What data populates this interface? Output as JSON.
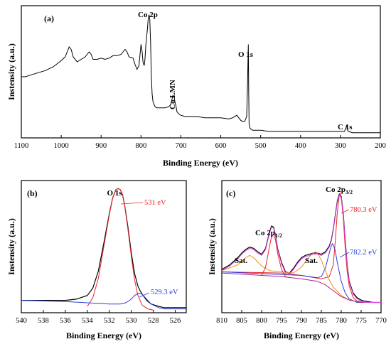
{
  "chart_data": [
    {
      "panel": "(a)",
      "type": "line",
      "xlabel": "Binding Energy (eV)",
      "ylabel": "Instensity (a.u.)",
      "xlim": [
        1100,
        200
      ],
      "xticks": [
        1100,
        1000,
        900,
        800,
        700,
        600,
        500,
        400,
        300,
        200
      ],
      "yticks_shown": false,
      "annotations": [
        "Co 2p",
        "Co LMN",
        "O 1s",
        "C 1s"
      ],
      "series": [
        {
          "color": "#000000",
          "x": [
            1100,
            1090,
            1080,
            1060,
            1040,
            1020,
            1000,
            990,
            985,
            980,
            975,
            970,
            960,
            950,
            940,
            935,
            930,
            925,
            920,
            910,
            900,
            890,
            880,
            870,
            860,
            850,
            845,
            840,
            835,
            830,
            820,
            815,
            810,
            805,
            800,
            797,
            795,
            792,
            790,
            788,
            786,
            784,
            782,
            780,
            778,
            776,
            774,
            772,
            770,
            765,
            760,
            750,
            740,
            730,
            725,
            720,
            717,
            715,
            712,
            710,
            705,
            700,
            690,
            680,
            660,
            640,
            620,
            600,
            580,
            570,
            560,
            555,
            550,
            545,
            540,
            535,
            533,
            531,
            530,
            529,
            527,
            525,
            520,
            500,
            480,
            460,
            440,
            420,
            400,
            380,
            360,
            340,
            320,
            300,
            290,
            286,
            284,
            282,
            280,
            270,
            250,
            230,
            210,
            200
          ],
          "y": [
            0.46,
            0.46,
            0.47,
            0.49,
            0.51,
            0.54,
            0.59,
            0.62,
            0.66,
            0.7,
            0.68,
            0.62,
            0.58,
            0.6,
            0.62,
            0.64,
            0.66,
            0.64,
            0.6,
            0.6,
            0.61,
            0.6,
            0.61,
            0.63,
            0.63,
            0.64,
            0.66,
            0.68,
            0.66,
            0.62,
            0.61,
            0.56,
            0.52,
            0.55,
            0.72,
            0.66,
            0.58,
            0.55,
            0.6,
            0.71,
            0.78,
            0.84,
            0.92,
            0.96,
            0.92,
            0.74,
            0.46,
            0.32,
            0.26,
            0.22,
            0.21,
            0.21,
            0.21,
            0.22,
            0.24,
            0.31,
            0.3,
            0.26,
            0.22,
            0.18,
            0.16,
            0.15,
            0.14,
            0.14,
            0.14,
            0.13,
            0.13,
            0.13,
            0.12,
            0.13,
            0.15,
            0.13,
            0.11,
            0.1,
            0.1,
            0.14,
            0.38,
            0.72,
            0.36,
            0.08,
            0.05,
            0.04,
            0.03,
            0.03,
            0.02,
            0.02,
            0.02,
            0.02,
            0.02,
            0.02,
            0.02,
            0.02,
            0.02,
            0.02,
            0.02,
            0.05,
            0.07,
            0.03,
            0.02,
            0.01,
            0.01,
            0.01,
            0.01,
            0.01
          ]
        }
      ]
    },
    {
      "panel": "(b)",
      "type": "line",
      "title": "O 1s",
      "xlabel": "Binding Energy (eV)",
      "ylabel": "Instensity (a.u.)",
      "xlim": [
        540,
        525
      ],
      "xticks": [
        540,
        538,
        536,
        534,
        532,
        530,
        528,
        526
      ],
      "annotations": [
        {
          "text": "531 eV",
          "color": "#e8262a"
        },
        {
          "text": "529.3 eV",
          "color": "#2a3fd8"
        }
      ],
      "series": [
        {
          "color": "#000000",
          "x": [
            540,
            539,
            538,
            537,
            536,
            535,
            534,
            533.5,
            533,
            532.5,
            532,
            531.7,
            531.4,
            531.2,
            531,
            530.8,
            530.6,
            530.3,
            530,
            529.7,
            529.4,
            529.2,
            529,
            528.6,
            528.2,
            527.5,
            527,
            526,
            525
          ],
          "y": [
            0.08,
            0.08,
            0.08,
            0.08,
            0.08,
            0.09,
            0.12,
            0.18,
            0.32,
            0.55,
            0.79,
            0.92,
            0.99,
            1.0,
            0.99,
            0.95,
            0.86,
            0.68,
            0.47,
            0.3,
            0.2,
            0.16,
            0.13,
            0.08,
            0.05,
            0.03,
            0.02,
            0.02,
            0.02
          ]
        },
        {
          "color": "#e8262a",
          "x": [
            534,
            533.5,
            533,
            532.5,
            532,
            531.7,
            531.4,
            531.2,
            531,
            530.8,
            530.6,
            530.3,
            530,
            529.7,
            529.4,
            529,
            528.5,
            528
          ],
          "y": [
            0.03,
            0.1,
            0.26,
            0.52,
            0.78,
            0.92,
            0.99,
            1.0,
            0.99,
            0.95,
            0.86,
            0.66,
            0.44,
            0.25,
            0.12,
            0.04,
            0.01,
            0.0
          ]
        },
        {
          "color": "#2a3fd8",
          "x": [
            540,
            536,
            534,
            532,
            531,
            530.5,
            530,
            529.7,
            529.3,
            529,
            528.6,
            528.2,
            527.5,
            527,
            525
          ],
          "y": [
            0.08,
            0.07,
            0.06,
            0.05,
            0.05,
            0.06,
            0.09,
            0.12,
            0.14,
            0.13,
            0.09,
            0.05,
            0.02,
            0.01,
            0.01
          ]
        }
      ]
    },
    {
      "panel": "(c)",
      "type": "line",
      "xlabel": "Binding Energy (eV)",
      "ylabel": "Instensity (a.u.)",
      "xlim": [
        810,
        770
      ],
      "xticks": [
        810,
        805,
        800,
        795,
        790,
        785,
        780,
        775,
        770
      ],
      "annotations": [
        {
          "text": "Co 2p1/2",
          "color": "#000000"
        },
        {
          "text": "Co 2p3/2",
          "color": "#000000"
        },
        {
          "text": "Sat.",
          "color": "#e8901c"
        },
        {
          "text": "Sat.",
          "color": "#e8901c"
        },
        {
          "text": "780.3 eV",
          "color": "#e8262a"
        },
        {
          "text": "782.2 eV",
          "color": "#2a3fd8"
        }
      ],
      "series": [
        {
          "color": "#000000",
          "x": [
            810,
            808,
            806,
            805,
            804,
            803,
            802,
            801,
            800,
            799,
            798,
            797.5,
            797,
            796.5,
            796,
            795,
            794,
            793,
            792,
            791,
            790,
            789,
            788,
            787,
            786,
            785,
            784,
            783,
            782.5,
            782,
            781.5,
            781,
            780.5,
            780,
            779.5,
            779,
            778.5,
            778,
            777,
            776,
            775,
            774,
            772,
            770
          ],
          "y": [
            0.3,
            0.34,
            0.4,
            0.44,
            0.47,
            0.49,
            0.48,
            0.45,
            0.43,
            0.48,
            0.62,
            0.67,
            0.66,
            0.59,
            0.48,
            0.36,
            0.28,
            0.27,
            0.31,
            0.36,
            0.4,
            0.42,
            0.43,
            0.44,
            0.44,
            0.43,
            0.45,
            0.5,
            0.55,
            0.64,
            0.76,
            0.88,
            0.94,
            0.92,
            0.78,
            0.55,
            0.34,
            0.2,
            0.1,
            0.06,
            0.04,
            0.03,
            0.02,
            0.02
          ]
        },
        {
          "color": "#e8262a",
          "x": [
            810,
            795,
            790,
            785,
            783,
            782,
            781.5,
            781,
            780.5,
            780.3,
            780,
            779.5,
            779,
            778.5,
            778,
            777,
            776,
            774,
            770
          ],
          "y": [
            0.28,
            0.27,
            0.25,
            0.22,
            0.24,
            0.34,
            0.54,
            0.78,
            0.93,
            0.95,
            0.91,
            0.74,
            0.48,
            0.28,
            0.16,
            0.06,
            0.03,
            0.02,
            0.02
          ]
        },
        {
          "color": "#2a3fd8",
          "x": [
            810,
            790,
            786,
            785,
            784,
            783,
            782.5,
            782.2,
            782,
            781.5,
            781,
            780,
            779,
            778,
            776,
            770
          ],
          "y": [
            0.28,
            0.25,
            0.23,
            0.24,
            0.31,
            0.44,
            0.5,
            0.52,
            0.51,
            0.46,
            0.36,
            0.2,
            0.1,
            0.05,
            0.02,
            0.02
          ]
        },
        {
          "color": "#e8901c",
          "x": [
            810,
            806,
            804,
            803,
            802,
            800,
            798,
            795,
            792,
            790,
            788,
            787,
            786.5,
            786,
            785,
            784,
            783,
            782,
            780,
            778,
            775,
            770
          ],
          "y": [
            0.29,
            0.34,
            0.4,
            0.42,
            0.4,
            0.33,
            0.29,
            0.28,
            0.27,
            0.32,
            0.41,
            0.44,
            0.45,
            0.44,
            0.38,
            0.29,
            0.21,
            0.15,
            0.08,
            0.04,
            0.02,
            0.02
          ]
        },
        {
          "color": "#b01f8a",
          "x": [
            810,
            805,
            800,
            795,
            790,
            786,
            784,
            782,
            780,
            778,
            775,
            770
          ],
          "y": [
            0.27,
            0.26,
            0.25,
            0.24,
            0.22,
            0.2,
            0.17,
            0.12,
            0.07,
            0.04,
            0.02,
            0.02
          ]
        },
        {
          "color": "#e040e0",
          "x": [
            810,
            808,
            806,
            805,
            804,
            803,
            802,
            801,
            800,
            799,
            798,
            797.5,
            797,
            796.5,
            796,
            795,
            794,
            793,
            792,
            791,
            790,
            789,
            788,
            787,
            786,
            785,
            784,
            783,
            782.5,
            782,
            781.5,
            781,
            780.5,
            780,
            779.5,
            779,
            778.5,
            778,
            777,
            776,
            775,
            774,
            772,
            770
          ],
          "y": [
            0.29,
            0.33,
            0.39,
            0.43,
            0.46,
            0.48,
            0.47,
            0.44,
            0.42,
            0.47,
            0.61,
            0.66,
            0.65,
            0.58,
            0.47,
            0.35,
            0.27,
            0.26,
            0.3,
            0.35,
            0.39,
            0.41,
            0.42,
            0.43,
            0.43,
            0.42,
            0.44,
            0.49,
            0.54,
            0.63,
            0.75,
            0.87,
            0.93,
            0.91,
            0.77,
            0.54,
            0.33,
            0.19,
            0.09,
            0.05,
            0.03,
            0.02,
            0.02,
            0.02
          ]
        },
        {
          "color": "#e8262a",
          "x": [
            800,
            799,
            798,
            797.5,
            797,
            796.5,
            796,
            795,
            794,
            793
          ],
          "y": [
            0.25,
            0.32,
            0.5,
            0.58,
            0.6,
            0.55,
            0.44,
            0.3,
            0.24,
            0.23
          ]
        }
      ]
    }
  ]
}
